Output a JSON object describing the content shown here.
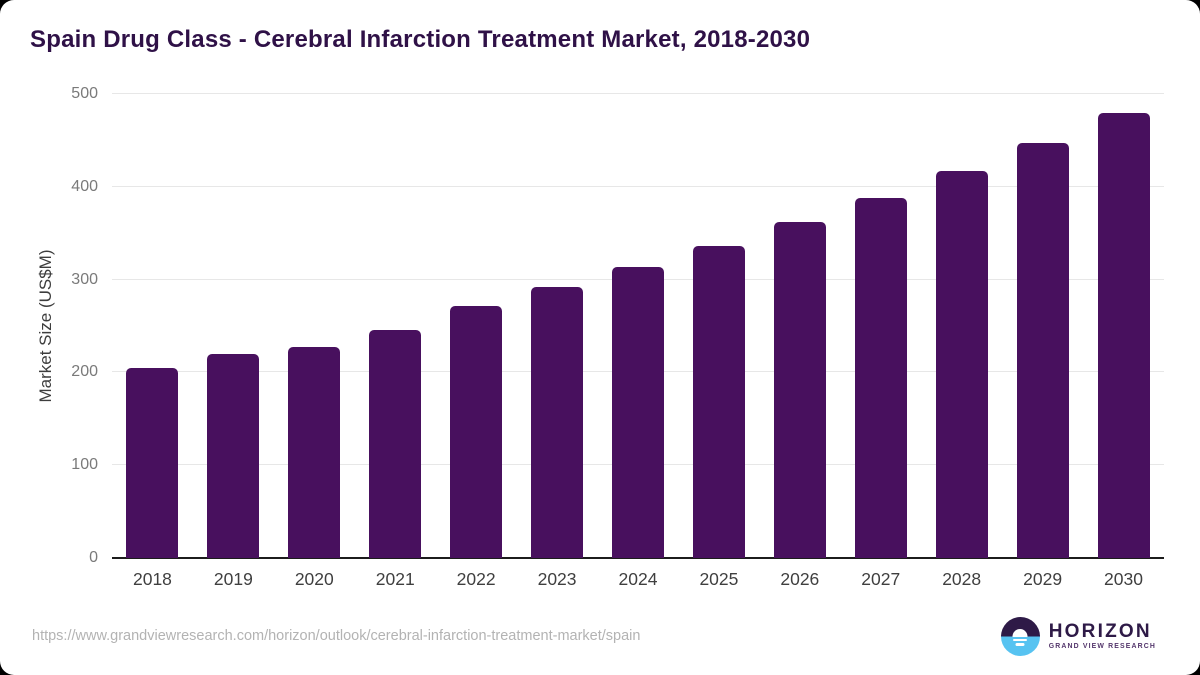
{
  "title": "Spain Drug Class - Cerebral Infarction Treatment Market, 2018-2030",
  "chart_data": {
    "type": "bar",
    "title": "Spain Drug Class - Cerebral Infarction Treatment Market, 2018-2030",
    "categories": [
      "2018",
      "2019",
      "2020",
      "2021",
      "2022",
      "2023",
      "2024",
      "2025",
      "2026",
      "2027",
      "2028",
      "2029",
      "2030"
    ],
    "values": [
      205,
      220,
      227,
      246,
      272,
      292,
      314,
      336,
      362,
      388,
      417,
      447,
      480
    ],
    "xlabel": "",
    "ylabel": "Market Size (US$M)",
    "ylim": [
      0,
      500
    ],
    "yticks": [
      0,
      100,
      200,
      300,
      400,
      500
    ],
    "grid": true,
    "legend": false,
    "bar_color": "#48105e"
  },
  "footer": {
    "source_url": "https://www.grandviewresearch.com/horizon/outlook/cerebral-infarction-treatment-market/spain",
    "logo": {
      "wordmark": "HORIZON",
      "subtitle": "GRAND VIEW RESEARCH"
    }
  },
  "colors": {
    "title": "#2f1147",
    "bar": "#48105e",
    "grid": "#e7e7e7",
    "axis": "#1c1c1c",
    "y_tick": "#7a7a7a",
    "x_tick": "#3f3f3f",
    "url": "#b3b3b3",
    "logo_purple": "#2e1a47",
    "logo_blue": "#57c3f1"
  }
}
